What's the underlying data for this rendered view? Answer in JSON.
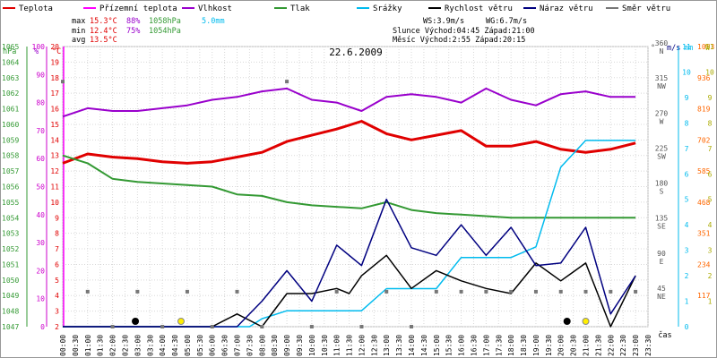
{
  "legend": [
    {
      "label": "Teplota",
      "color": "#e00000"
    },
    {
      "label": "Přízemní teplota",
      "color": "#ff00ff"
    },
    {
      "label": "Vlhkost",
      "color": "#9900cc"
    },
    {
      "label": "Tlak",
      "color": "#339933"
    },
    {
      "label": "Srážky",
      "color": "#00bbee"
    },
    {
      "label": "Rychlost větru",
      "color": "#000000"
    },
    {
      "label": "Náraz větru",
      "color": "#000080"
    },
    {
      "label": "Směr větru",
      "color": "#777777"
    }
  ],
  "stats": {
    "max_label": "max",
    "max_temp": "15.3°C",
    "max_hum": "88%",
    "max_press": "1058hPa",
    "max_rain": "5.0mm",
    "min_label": "min",
    "min_temp": "12.4°C",
    "min_hum": "75%",
    "min_press": "1054hPa",
    "avg_label": "avg",
    "avg_temp": "13.5°C",
    "ws": "WS:3.9m/s",
    "wg": "WG:6.7m/s",
    "sun": "Slunce Východ:04:45  Západ:21:00",
    "moon": "Měsíc  Východ:2:55  Západ:20:15"
  },
  "chart_data": {
    "type": "line",
    "title": "22.6.2009",
    "xlabel": "čas",
    "x": [
      "00:00",
      "00:30",
      "01:00",
      "01:30",
      "02:00",
      "02:30",
      "03:00",
      "03:30",
      "04:00",
      "04:30",
      "05:00",
      "05:30",
      "06:00",
      "06:30",
      "07:00",
      "07:30",
      "08:00",
      "08:30",
      "09:00",
      "09:30",
      "10:00",
      "10:30",
      "11:00",
      "11:30",
      "12:00",
      "12:30",
      "13:00",
      "13:30",
      "14:00",
      "14:30",
      "15:00",
      "15:30",
      "16:00",
      "16:30",
      "17:00",
      "17:30",
      "18:00",
      "18:30",
      "19:00",
      "19:30",
      "20:00",
      "20:30",
      "21:00",
      "21:30",
      "22:00",
      "22:30",
      "23:00",
      "23:30"
    ],
    "axes": {
      "hpa": {
        "label": "hPa",
        "ticks": [
          "1047",
          "1048",
          "1049",
          "1050",
          "1051",
          "1052",
          "1053",
          "1054",
          "1055",
          "1056",
          "1057",
          "1058",
          "1059",
          "1060",
          "1061",
          "1062",
          "1063",
          "1064",
          "1065"
        ]
      },
      "percent": {
        "label": "%",
        "ticks": [
          "0",
          "10",
          "20",
          "30",
          "40",
          "50",
          "60",
          "70",
          "80",
          "90",
          "100"
        ]
      },
      "celsius": {
        "label": "°C",
        "ticks": [
          "2",
          "3",
          "4",
          "5",
          "6",
          "7",
          "8",
          "9",
          "10",
          "11",
          "12",
          "13",
          "14",
          "15",
          "16",
          "17",
          "18",
          "19",
          "20"
        ]
      },
      "direction": {
        "label": "°",
        "ticks": [
          "45 NE",
          "90 E",
          "135 SE",
          "180 S",
          "225 SW",
          "270 W",
          "315 NW",
          "360 N"
        ]
      },
      "ms": {
        "label": "m/s",
        "ticks": [
          "0",
          "1",
          "2",
          "3",
          "4",
          "5",
          "6",
          "7",
          "8",
          "9",
          "10",
          "11"
        ]
      },
      "mm": {
        "label": "mm",
        "ticks": [
          "117",
          "234",
          "351",
          "468",
          "585",
          "702",
          "819",
          "936",
          "1053"
        ]
      },
      "w": {
        "label": "W",
        "ticks": [
          "1",
          "2",
          "3",
          "4",
          "5",
          "6",
          "7",
          "8",
          "9",
          "10",
          "11"
        ]
      }
    },
    "series": [
      {
        "name": "Teplota",
        "axis": "celsius",
        "color": "#e00000",
        "points": [
          [
            0,
            12.5
          ],
          [
            1,
            13.1
          ],
          [
            2,
            12.9
          ],
          [
            3,
            12.8
          ],
          [
            4,
            12.6
          ],
          [
            5,
            12.5
          ],
          [
            6,
            12.6
          ],
          [
            7,
            12.9
          ],
          [
            8,
            13.2
          ],
          [
            9,
            13.9
          ],
          [
            10,
            14.3
          ],
          [
            11,
            14.7
          ],
          [
            12,
            15.2
          ],
          [
            13,
            14.4
          ],
          [
            14,
            14.0
          ],
          [
            15,
            14.3
          ],
          [
            16,
            14.6
          ],
          [
            17,
            13.6
          ],
          [
            18,
            13.6
          ],
          [
            19,
            13.9
          ],
          [
            20,
            13.4
          ],
          [
            21,
            13.2
          ],
          [
            22,
            13.4
          ],
          [
            23,
            13.8
          ]
        ]
      },
      {
        "name": "Vlhkost",
        "axis": "percent",
        "color": "#9900cc",
        "points": [
          [
            0,
            75
          ],
          [
            1,
            78
          ],
          [
            2,
            77
          ],
          [
            3,
            77
          ],
          [
            4,
            78
          ],
          [
            5,
            79
          ],
          [
            6,
            81
          ],
          [
            7,
            82
          ],
          [
            8,
            84
          ],
          [
            9,
            85
          ],
          [
            10,
            81
          ],
          [
            11,
            80
          ],
          [
            12,
            77
          ],
          [
            13,
            82
          ],
          [
            14,
            83
          ],
          [
            15,
            82
          ],
          [
            16,
            80
          ],
          [
            17,
            85
          ],
          [
            18,
            81
          ],
          [
            19,
            79
          ],
          [
            20,
            83
          ],
          [
            21,
            84
          ],
          [
            22,
            82
          ],
          [
            23,
            82
          ]
        ]
      },
      {
        "name": "Tlak",
        "axis": "hpa",
        "color": "#339933",
        "points": [
          [
            0,
            1058
          ],
          [
            1,
            1057.5
          ],
          [
            2,
            1056.5
          ],
          [
            3,
            1056.3
          ],
          [
            4,
            1056.2
          ],
          [
            5,
            1056.1
          ],
          [
            6,
            1056
          ],
          [
            7,
            1055.5
          ],
          [
            8,
            1055.4
          ],
          [
            9,
            1055
          ],
          [
            10,
            1054.8
          ],
          [
            11,
            1054.7
          ],
          [
            12,
            1054.6
          ],
          [
            13,
            1055
          ],
          [
            14,
            1054.5
          ],
          [
            15,
            1054.3
          ],
          [
            16,
            1054.2
          ],
          [
            17,
            1054.1
          ],
          [
            18,
            1054
          ],
          [
            19,
            1054
          ],
          [
            20,
            1054
          ],
          [
            21,
            1054
          ],
          [
            22,
            1054
          ],
          [
            23,
            1054
          ]
        ]
      },
      {
        "name": "Srážky",
        "axis": "mm",
        "color": "#00bbee",
        "points": [
          [
            0,
            0
          ],
          [
            7.5,
            0
          ],
          [
            8,
            30
          ],
          [
            9,
            60
          ],
          [
            10,
            60
          ],
          [
            11,
            60
          ],
          [
            11.5,
            60
          ],
          [
            12,
            60
          ],
          [
            13,
            143
          ],
          [
            14,
            143
          ],
          [
            15,
            143
          ],
          [
            16,
            260
          ],
          [
            17,
            260
          ],
          [
            18,
            260
          ],
          [
            19,
            300
          ],
          [
            20,
            600
          ],
          [
            21,
            700
          ],
          [
            22,
            700
          ],
          [
            23,
            700
          ]
        ]
      },
      {
        "name": "Rychlost větru",
        "axis": "ms",
        "color": "#000000",
        "points": [
          [
            0,
            0
          ],
          [
            5,
            0
          ],
          [
            6,
            0
          ],
          [
            7,
            0.5
          ],
          [
            8,
            0
          ],
          [
            9,
            1.3
          ],
          [
            10,
            1.3
          ],
          [
            11,
            1.5
          ],
          [
            11.5,
            1.3
          ],
          [
            12,
            2
          ],
          [
            13,
            2.8
          ],
          [
            14,
            1.5
          ],
          [
            15,
            2.2
          ],
          [
            16,
            1.8
          ],
          [
            17,
            1.5
          ],
          [
            18,
            1.3
          ],
          [
            19,
            2.5
          ],
          [
            20,
            1.8
          ],
          [
            21,
            2.5
          ],
          [
            22,
            0
          ],
          [
            23,
            2
          ]
        ]
      },
      {
        "name": "Náraz větru",
        "axis": "ms",
        "color": "#000080",
        "points": [
          [
            0,
            0
          ],
          [
            5,
            0
          ],
          [
            6,
            0
          ],
          [
            7,
            0
          ],
          [
            8,
            1
          ],
          [
            9,
            2.2
          ],
          [
            10,
            1
          ],
          [
            11,
            3.2
          ],
          [
            12,
            2.4
          ],
          [
            13,
            5
          ],
          [
            14,
            3.1
          ],
          [
            15,
            2.8
          ],
          [
            16,
            4
          ],
          [
            17,
            2.8
          ],
          [
            18,
            3.9
          ],
          [
            19,
            2.4
          ],
          [
            20,
            2.5
          ],
          [
            21,
            3.9
          ],
          [
            22,
            0.5
          ],
          [
            23,
            2
          ]
        ]
      }
    ],
    "wind_direction": {
      "axis": "direction",
      "points": [
        [
          0,
          315
        ],
        [
          1,
          45
        ],
        [
          2,
          0
        ],
        [
          3,
          45
        ],
        [
          4,
          0
        ],
        [
          5,
          45
        ],
        [
          6,
          0
        ],
        [
          7,
          45
        ],
        [
          8,
          0
        ],
        [
          9,
          315
        ],
        [
          10,
          0
        ],
        [
          11,
          45
        ],
        [
          12,
          0
        ],
        [
          13,
          45
        ],
        [
          14,
          0
        ],
        [
          15,
          45
        ],
        [
          16,
          45
        ],
        [
          17,
          45
        ],
        [
          18,
          45
        ],
        [
          19,
          45
        ],
        [
          20,
          45
        ],
        [
          21,
          45
        ],
        [
          22,
          45
        ],
        [
          23,
          45
        ]
      ]
    },
    "markers": {
      "moonrise": "02:55",
      "sunrise": "04:45",
      "moonset": "20:15",
      "sunset": "21:00"
    },
    "grid": true
  }
}
